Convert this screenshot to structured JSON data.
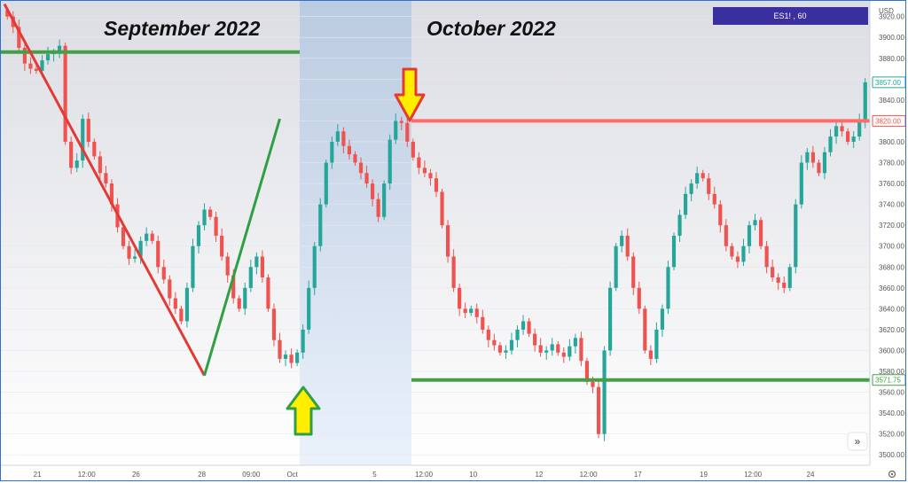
{
  "header": {
    "currency": "USD",
    "symbol_box": "ES1! , 60",
    "nav_glyph": "»",
    "settings_icon": "gear-icon"
  },
  "annotations": {
    "september_label": "September 2022",
    "october_label": "October 2022"
  },
  "price_badges": [
    {
      "name": "last-price",
      "value": 3857.0,
      "label": "3857.00",
      "color": "#26a69a"
    },
    {
      "name": "resistance",
      "value": 3820.0,
      "label": "3820.00",
      "color": "#ef5350"
    },
    {
      "name": "support",
      "value": 3571.75,
      "label": "3571.75",
      "color": "#43a047"
    }
  ],
  "colors": {
    "up": "#26a69a",
    "down": "#ef5350",
    "trend_down": "#e53935",
    "trend_up": "#2ea043",
    "level_green": "#43a047",
    "level_red": "#ff6b6b",
    "arrow_fill": "#ffee00",
    "arrow_down_border": "#e53935",
    "arrow_up_border": "#2ea043",
    "symbol_box": "#3a2f9e",
    "highlight": "#b7c9e0"
  },
  "chart_data": {
    "type": "line",
    "ylim": [
      3490,
      3935
    ],
    "y_ticks": [
      3920,
      3900,
      3880,
      3860,
      3840,
      3820,
      3800,
      3780,
      3760,
      3740,
      3720,
      3700,
      3680,
      3660,
      3640,
      3620,
      3600,
      3580,
      3560,
      3540,
      3520,
      3500
    ],
    "x_ticks": [
      "21",
      "12:00",
      "26",
      "28",
      "09:00",
      "Oct",
      "5",
      "12:00",
      "10",
      "12",
      "12:00",
      "17",
      "19",
      "12:00",
      "24"
    ],
    "x_tick_index": [
      4,
      10,
      16,
      24,
      30,
      35,
      45,
      51,
      57,
      65,
      71,
      77,
      85,
      91,
      98
    ],
    "price_series": [
      3920,
      3910,
      3890,
      3875,
      3870,
      3868,
      3878,
      3884,
      3885,
      3892,
      3800,
      3775,
      3782,
      3822,
      3800,
      3786,
      3770,
      3760,
      3740,
      3718,
      3700,
      3688,
      3690,
      3705,
      3712,
      3705,
      3680,
      3668,
      3650,
      3640,
      3628,
      3660,
      3700,
      3720,
      3735,
      3728,
      3710,
      3690,
      3672,
      3650,
      3640,
      3660,
      3680,
      3690,
      3670,
      3640,
      3610,
      3592,
      3596,
      3588,
      3598,
      3620,
      3660,
      3700,
      3740,
      3780,
      3800,
      3810,
      3796,
      3788,
      3780,
      3770,
      3760,
      3745,
      3728,
      3760,
      3802,
      3820,
      3818,
      3800,
      3785,
      3775,
      3770,
      3765,
      3752,
      3720,
      3690,
      3660,
      3640,
      3636,
      3640,
      3632,
      3620,
      3610,
      3605,
      3598,
      3600,
      3610,
      3620,
      3628,
      3616,
      3605,
      3598,
      3600,
      3606,
      3598,
      3594,
      3604,
      3612,
      3590,
      3570,
      3565,
      3520,
      3600,
      3660,
      3700,
      3710,
      3690,
      3660,
      3640,
      3600,
      3592,
      3620,
      3640,
      3680,
      3710,
      3730,
      3750,
      3760,
      3770,
      3765,
      3750,
      3740,
      3720,
      3700,
      3690,
      3685,
      3700,
      3720,
      3725,
      3700,
      3680,
      3670,
      3665,
      3660,
      3680,
      3740,
      3780,
      3790,
      3780,
      3770,
      3790,
      3805,
      3815,
      3810,
      3800,
      3805,
      3820,
      3857
    ],
    "support_level": 3571.75,
    "resistance_level": 3820.0,
    "upper_green_level": 3886,
    "trend_down": {
      "start": [
        0,
        3932
      ],
      "end": [
        34,
        3576
      ]
    },
    "trend_up": {
      "start": [
        34,
        3576
      ],
      "end": [
        47,
        3822
      ]
    }
  }
}
